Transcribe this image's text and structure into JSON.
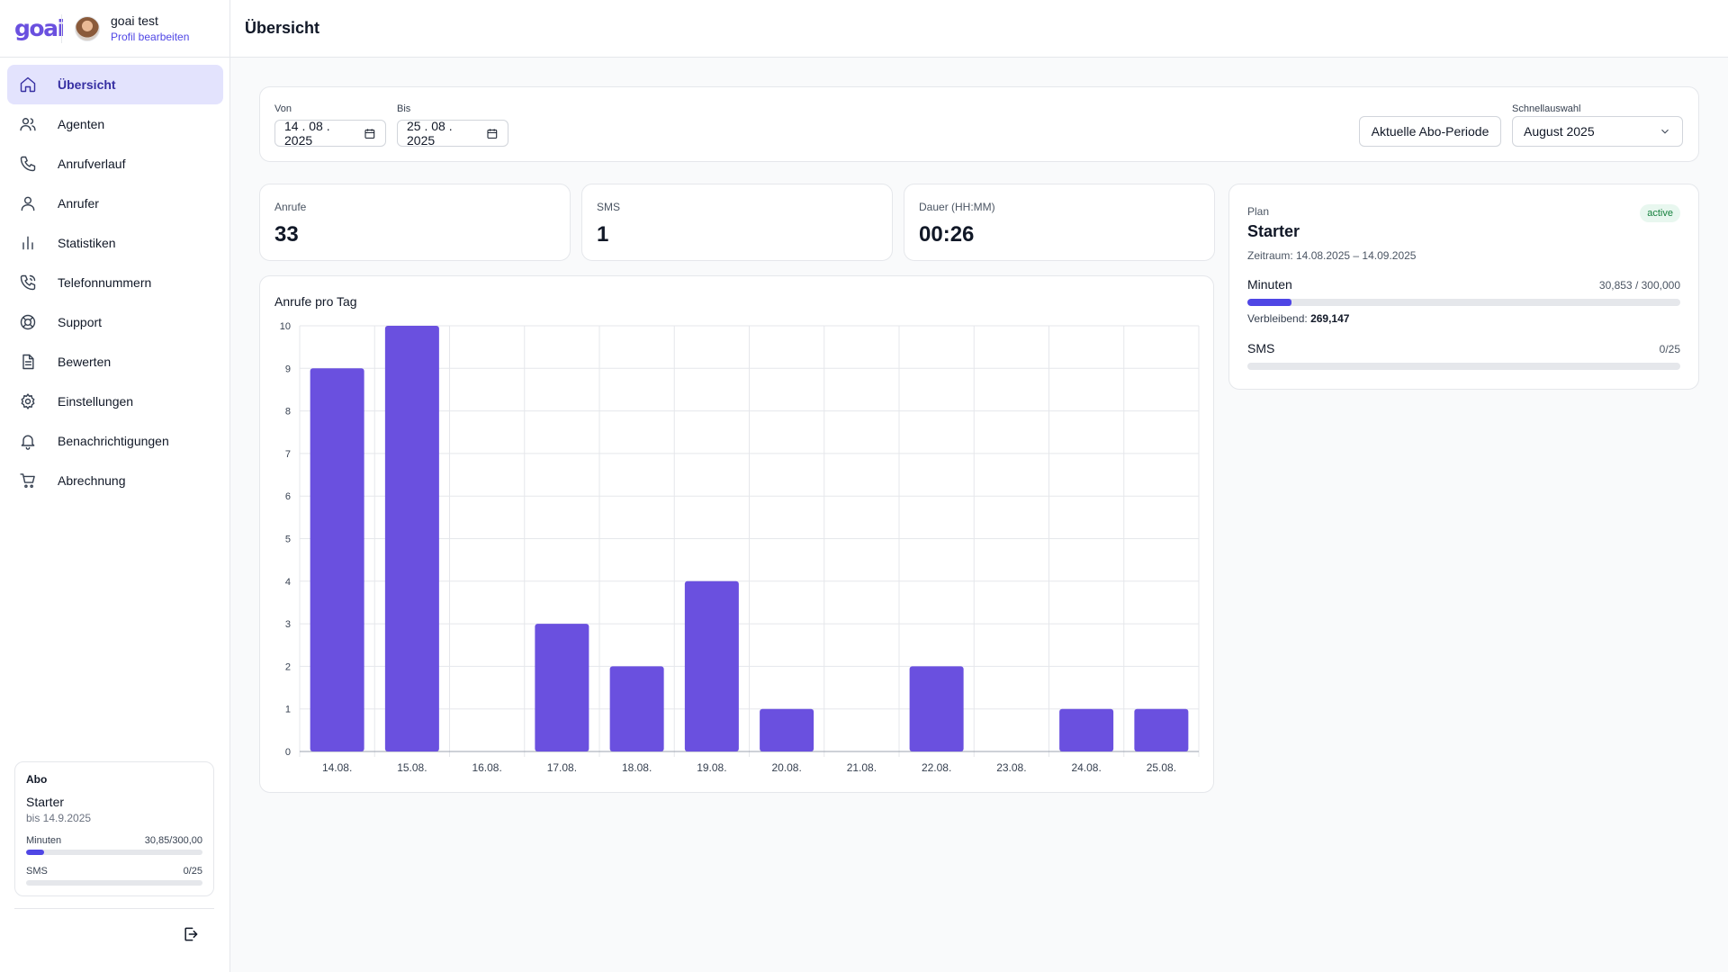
{
  "brand": {
    "logo_text": "goai"
  },
  "user": {
    "name": "goai test",
    "edit_profile": "Profil bearbeiten"
  },
  "nav": [
    {
      "label": "Übersicht",
      "icon": "home-icon",
      "active": true
    },
    {
      "label": "Agenten",
      "icon": "users-icon",
      "active": false
    },
    {
      "label": "Anrufverlauf",
      "icon": "phone-icon",
      "active": false
    },
    {
      "label": "Anrufer",
      "icon": "user-icon",
      "active": false
    },
    {
      "label": "Statistiken",
      "icon": "bar-chart-icon",
      "active": false
    },
    {
      "label": "Telefonnummern",
      "icon": "phone-call-icon",
      "active": false
    },
    {
      "label": "Support",
      "icon": "lifebuoy-icon",
      "active": false
    },
    {
      "label": "Bewerten",
      "icon": "document-icon",
      "active": false
    },
    {
      "label": "Einstellungen",
      "icon": "gear-icon",
      "active": false
    },
    {
      "label": "Benachrichtigungen",
      "icon": "bell-icon",
      "active": false
    },
    {
      "label": "Abrechnung",
      "icon": "cart-icon",
      "active": false
    }
  ],
  "sidebar_abo": {
    "title": "Abo",
    "plan": "Starter",
    "until": "bis 14.9.2025",
    "minutes_label": "Minuten",
    "minutes_value": "30,85/300,00",
    "minutes_fraction": 0.1028,
    "sms_label": "SMS",
    "sms_value": "0/25",
    "sms_fraction": 0
  },
  "header": {
    "title": "Übersicht"
  },
  "filter": {
    "from_label": "Von",
    "from_value": "14 . 08 . 2025",
    "to_label": "Bis",
    "to_value": "25 . 08 . 2025",
    "period_button": "Aktuelle Abo-Periode",
    "quick_label": "Schnellauswahl",
    "quick_value": "August 2025"
  },
  "stats": [
    {
      "label": "Anrufe",
      "value": "33"
    },
    {
      "label": "SMS",
      "value": "1"
    },
    {
      "label": "Dauer (HH:MM)",
      "value": "00:26"
    }
  ],
  "plan": {
    "label": "Plan",
    "status": "active",
    "name": "Starter",
    "period": "Zeitraum: 14.08.2025 – 14.09.2025",
    "minutes_label": "Minuten",
    "minutes_value": "30,853 / 300,000",
    "minutes_fraction": 0.1028,
    "remaining_label": "Verbleibend:",
    "remaining_value": "269,147",
    "sms_label": "SMS",
    "sms_value": "0/25",
    "sms_fraction": 0
  },
  "colors": {
    "accent": "#4f46e5",
    "bar": "#6a50df",
    "active_bg": "#e3e3fd"
  },
  "chart_data": {
    "type": "bar",
    "title": "Anrufe pro Tag",
    "categories": [
      "14.08.",
      "15.08.",
      "16.08.",
      "17.08.",
      "18.08.",
      "19.08.",
      "20.08.",
      "21.08.",
      "22.08.",
      "23.08.",
      "24.08.",
      "25.08."
    ],
    "values": [
      9,
      10,
      0,
      3,
      2,
      4,
      1,
      0,
      2,
      0,
      1,
      1
    ],
    "ylim": [
      0,
      10
    ],
    "yticks": [
      0,
      1,
      2,
      3,
      4,
      5,
      6,
      7,
      8,
      9,
      10
    ],
    "grid": true,
    "color": "#6a50df"
  }
}
